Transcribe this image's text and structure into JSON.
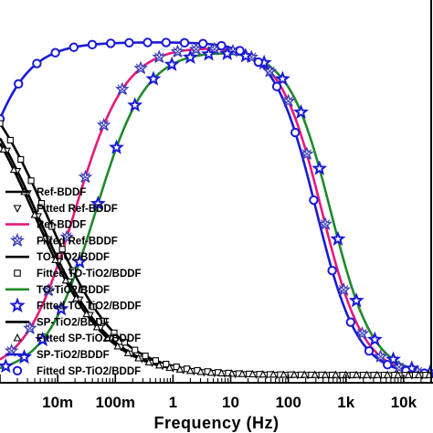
{
  "chart_data": {
    "type": "line",
    "xlabel": "Frequency (Hz)",
    "ylabel": "",
    "xscale": "log",
    "xlim": [
      0.001,
      30000
    ],
    "ylim": [
      0,
      1
    ],
    "x_tick_values": [
      0.01,
      0.1,
      1,
      10,
      100,
      1000,
      10000
    ],
    "x_tick_labels": [
      "10m",
      "100m",
      "1",
      "10",
      "100",
      "1k",
      "10k"
    ],
    "grid": false,
    "legend_position": "left",
    "legend": [
      {
        "label": "Ref-BDDF",
        "kind": "line",
        "color": "#000000"
      },
      {
        "label": "Fitted Ref-BDDF",
        "kind": "marker",
        "marker": "triangle-down",
        "color": "#000000"
      },
      {
        "label": "Ref-BDDF",
        "kind": "line",
        "color": "#e6197a"
      },
      {
        "label": "Fitted Ref-BDDF",
        "kind": "marker",
        "marker": "star-x",
        "color": "#3b3bb8"
      },
      {
        "label": "TO-TiO2/BDDF",
        "kind": "line",
        "color": "#000000"
      },
      {
        "label": "Fitted TO-TiO2/BDDF",
        "kind": "marker",
        "marker": "square",
        "color": "#000000"
      },
      {
        "label": "TO-TiO2/BDDF",
        "kind": "line",
        "color": "#1f8a2a"
      },
      {
        "label": "Fitted TO-TiO2/BDDF",
        "kind": "marker",
        "marker": "star",
        "color": "#1a1ad6"
      },
      {
        "label": "SP-TiO2/BDDF",
        "kind": "line",
        "color": "#000000"
      },
      {
        "label": "Fitted SP-TiO2/BDDF",
        "kind": "marker",
        "marker": "triangle-up",
        "color": "#000000"
      },
      {
        "label": "SP-TiO2/BDDF",
        "kind": "line",
        "color": "#1a1ad6"
      },
      {
        "label": "Fitted SP-TiO2/BDDF",
        "kind": "marker",
        "marker": "circle",
        "color": "#1a1ad6"
      }
    ],
    "series": [
      {
        "label": "Ref-BDDF (pink)",
        "color": "#e6197a",
        "marker": "star-x",
        "marker_color": "#3b3bb8",
        "y0": 0.02,
        "ymax": 0.88,
        "f_low": 0.02,
        "f_high": 380,
        "n_low": 1.0,
        "n_high": 1.2
      },
      {
        "label": "TO-TiO2/BDDF (green)",
        "color": "#1f8a2a",
        "marker": "star",
        "marker_color": "#1a1ad6",
        "y0": 0.02,
        "ymax": 0.87,
        "f_low": 0.045,
        "f_high": 550,
        "n_low": 1.0,
        "n_high": 1.2
      },
      {
        "label": "SP-TiO2/BDDF (blue)",
        "color": "#1a1ad6",
        "marker": "circle",
        "marker_color": "#1a1ad6",
        "y0": 0.02,
        "ymax": 0.89,
        "f_low": 0.0003,
        "f_high": 300,
        "n_low": 1.0,
        "n_high": 1.2
      },
      {
        "label": "Ref-BDDF (black)",
        "color": "#000000",
        "marker": "triangle-down",
        "marker_color": "#000000",
        "y0": 0.02,
        "ymax": 0.855,
        "f_low": 1e-07,
        "f_high": 0.0045,
        "n_low": 1.0,
        "n_high": 0.7
      },
      {
        "label": "TO-TiO2/BDDF (black)",
        "color": "#000000",
        "marker": "square",
        "marker_color": "#000000",
        "y0": 0.02,
        "ymax": 0.855,
        "f_low": 1e-07,
        "f_high": 0.0065,
        "n_low": 1.0,
        "n_high": 0.7
      },
      {
        "label": "SP-TiO2/BDDF (black)",
        "color": "#000000",
        "marker": "triangle-up",
        "marker_color": "#000000",
        "y0": 0.02,
        "ymax": 0.855,
        "f_low": 1e-07,
        "f_high": 0.004,
        "n_low": 1.0,
        "n_high": 0.7
      }
    ]
  }
}
